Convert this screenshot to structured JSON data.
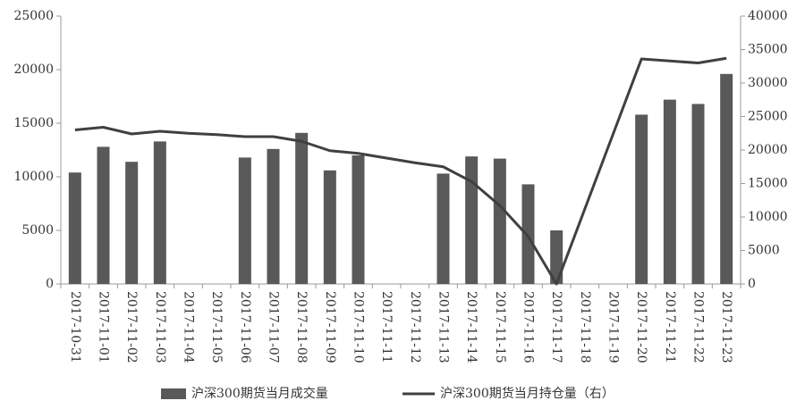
{
  "chart_data": {
    "type": "bar-line",
    "categories": [
      "2017-10-31",
      "2017-11-01",
      "2017-11-02",
      "2017-11-03",
      "2017-11-04",
      "2017-11-05",
      "2017-11-06",
      "2017-11-07",
      "2017-11-08",
      "2017-11-09",
      "2017-11-10",
      "2017-11-11",
      "2017-11-12",
      "2017-11-13",
      "2017-11-14",
      "2017-11-15",
      "2017-11-16",
      "2017-11-17",
      "2017-11-18",
      "2017-11-19",
      "2017-11-20",
      "2017-11-21",
      "2017-11-22",
      "2017-11-23"
    ],
    "series": [
      {
        "name": "沪深300期货当月成交量",
        "type": "bar",
        "color": "#595959",
        "values": [
          10400,
          12800,
          11400,
          13300,
          null,
          null,
          11800,
          12600,
          14100,
          10600,
          12000,
          null,
          null,
          10300,
          11900,
          11700,
          9300,
          5000,
          null,
          null,
          15800,
          17200,
          16800,
          19600
        ]
      },
      {
        "name": "沪深300期货当月持仓量（右）",
        "type": "line",
        "axis": "y2",
        "color": "#404040",
        "values": [
          23000,
          23400,
          22400,
          22800,
          22500,
          22300,
          22000,
          22000,
          21300,
          19900,
          19500,
          18800,
          18100,
          17500,
          15300,
          11700,
          7100,
          0,
          11200,
          22400,
          33600,
          33300,
          33000,
          33700
        ]
      }
    ],
    "ylim": [
      0,
      25000
    ],
    "yticks": [
      0,
      5000,
      10000,
      15000,
      20000,
      25000
    ],
    "y2lim": [
      0,
      40000
    ],
    "y2ticks": [
      0,
      5000,
      10000,
      15000,
      20000,
      25000,
      30000,
      35000,
      40000
    ],
    "grid": false,
    "legend": "bottom"
  }
}
